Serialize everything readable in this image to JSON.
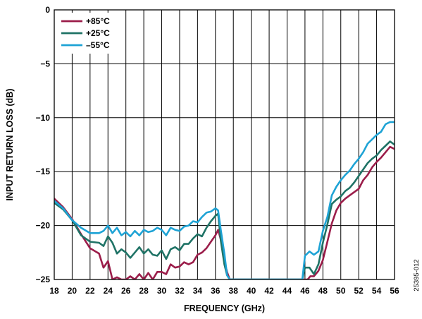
{
  "figure_id": "25395-012",
  "chart_data": {
    "type": "line",
    "title": "",
    "xlabel": "FREQUENCY (GHz)",
    "ylabel": "INPUT RETURN LOSS (dB)",
    "xlim": [
      18,
      56
    ],
    "ylim": [
      -25,
      0
    ],
    "x_ticks": [
      18,
      20,
      22,
      24,
      26,
      28,
      30,
      32,
      34,
      36,
      38,
      40,
      42,
      44,
      46,
      48,
      50,
      52,
      54,
      56
    ],
    "y_ticks": [
      0,
      -5,
      -10,
      -15,
      -20,
      -25
    ],
    "grid": true,
    "legend_position": "top-left",
    "series": [
      {
        "name": "+85°C",
        "color": "#9b1d4a",
        "x": [
          18,
          19,
          20,
          21,
          22,
          23,
          23.5,
          24,
          24.5,
          25,
          25.5,
          26,
          26.5,
          27,
          27.5,
          28,
          28.5,
          29,
          29.5,
          30,
          30.5,
          31,
          31.5,
          32,
          32.5,
          33,
          33.5,
          34,
          34.5,
          35,
          35.5,
          36,
          36.3,
          36.7,
          37,
          37.3,
          37.6,
          38,
          46.3,
          46.6,
          47,
          47.5,
          48,
          48.5,
          49,
          49.5,
          50,
          50.5,
          51,
          51.5,
          52,
          52.5,
          53,
          53.5,
          54,
          54.5,
          55,
          55.5,
          56
        ],
        "values": [
          -17.5,
          -18.3,
          -19.4,
          -20.8,
          -22.1,
          -22.6,
          -23.9,
          -23.3,
          -25,
          -24.8,
          -25,
          -25,
          -24.7,
          -25,
          -24.5,
          -25,
          -24.4,
          -25,
          -24.3,
          -24.3,
          -24.5,
          -23.6,
          -23.9,
          -23.8,
          -23.4,
          -23.6,
          -23.4,
          -22.7,
          -22.5,
          -22.1,
          -21.5,
          -20.9,
          -20.4,
          -21.6,
          -23.3,
          -24.3,
          -25,
          -25,
          -25,
          -24.7,
          -24.7,
          -24.2,
          -23.2,
          -21.5,
          -19.8,
          -18.6,
          -17.9,
          -17.5,
          -17.2,
          -16.9,
          -16.6,
          -15.8,
          -15.3,
          -14.6,
          -14.1,
          -13.7,
          -13.2,
          -12.7,
          -12.9
        ]
      },
      {
        "name": "+25°C",
        "color": "#1f7366",
        "x": [
          18,
          19,
          20,
          21,
          22,
          23,
          23.5,
          24,
          24.5,
          25,
          25.5,
          26,
          26.5,
          27,
          27.5,
          28,
          28.5,
          29,
          29.5,
          30,
          30.5,
          31,
          31.5,
          32,
          32.5,
          33,
          33.5,
          34,
          34.5,
          35,
          35.5,
          36,
          36.3,
          36.6,
          37,
          37.3,
          37.6,
          38,
          45.7,
          46,
          46.5,
          47,
          47.5,
          48,
          48.5,
          49,
          49.5,
          50,
          50.5,
          51,
          51.5,
          52,
          52.5,
          53,
          53.5,
          54,
          54.5,
          55,
          55.5,
          56
        ],
        "values": [
          -17.9,
          -18.5,
          -19.5,
          -20.9,
          -21.5,
          -21.6,
          -21.9,
          -21.0,
          -21.6,
          -22.6,
          -22.2,
          -22.5,
          -23.0,
          -22.5,
          -22.0,
          -22.6,
          -22.2,
          -22.7,
          -22.8,
          -22.3,
          -23.1,
          -22.2,
          -22.0,
          -22.3,
          -21.7,
          -21.7,
          -21.2,
          -20.8,
          -21.0,
          -20.2,
          -19.6,
          -19.1,
          -18.9,
          -21.4,
          -23.6,
          -24.6,
          -25,
          -25,
          -25,
          -23.9,
          -23.9,
          -24.5,
          -23.6,
          -21.6,
          -19.9,
          -18.0,
          -17.6,
          -17.3,
          -16.8,
          -16.5,
          -16.0,
          -15.4,
          -14.8,
          -14.2,
          -13.8,
          -13.5,
          -13.0,
          -12.6,
          -12.2,
          -12.5
        ]
      },
      {
        "name": "–55°C",
        "color": "#1ea3d5",
        "x": [
          18,
          19,
          20,
          21,
          22,
          23,
          23.5,
          24,
          24.5,
          25,
          25.5,
          26,
          26.5,
          27,
          27.5,
          28,
          28.5,
          29,
          29.5,
          30,
          30.5,
          31,
          31.5,
          32,
          32.5,
          33,
          33.5,
          34,
          34.5,
          35,
          35.5,
          36,
          36.3,
          36.6,
          37,
          37.3,
          37.6,
          38,
          45.7,
          46,
          46.5,
          47,
          47.5,
          48,
          48.5,
          49,
          49.5,
          50,
          50.5,
          51,
          51.5,
          52,
          52.5,
          53,
          53.5,
          54,
          54.5,
          55,
          55.5,
          56
        ],
        "values": [
          -17.7,
          -18.4,
          -19.5,
          -20.2,
          -20.7,
          -20.7,
          -20.5,
          -20.0,
          -20.7,
          -20.2,
          -20.9,
          -20.6,
          -21.0,
          -20.5,
          -20.9,
          -20.4,
          -20.6,
          -20.5,
          -20.2,
          -20.4,
          -20.9,
          -20.2,
          -20.4,
          -20.5,
          -20.1,
          -20.0,
          -19.6,
          -19.7,
          -19.2,
          -18.8,
          -18.7,
          -18.4,
          -18.6,
          -20.4,
          -22.6,
          -24.6,
          -25,
          -25,
          -25,
          -22.8,
          -22.4,
          -22.7,
          -22.4,
          -20.5,
          -19.2,
          -17.2,
          -16.4,
          -15.8,
          -15.3,
          -14.9,
          -14.3,
          -13.8,
          -13.2,
          -12.4,
          -12.0,
          -11.6,
          -11.3,
          -10.6,
          -10.4,
          -10.4
        ]
      }
    ]
  }
}
